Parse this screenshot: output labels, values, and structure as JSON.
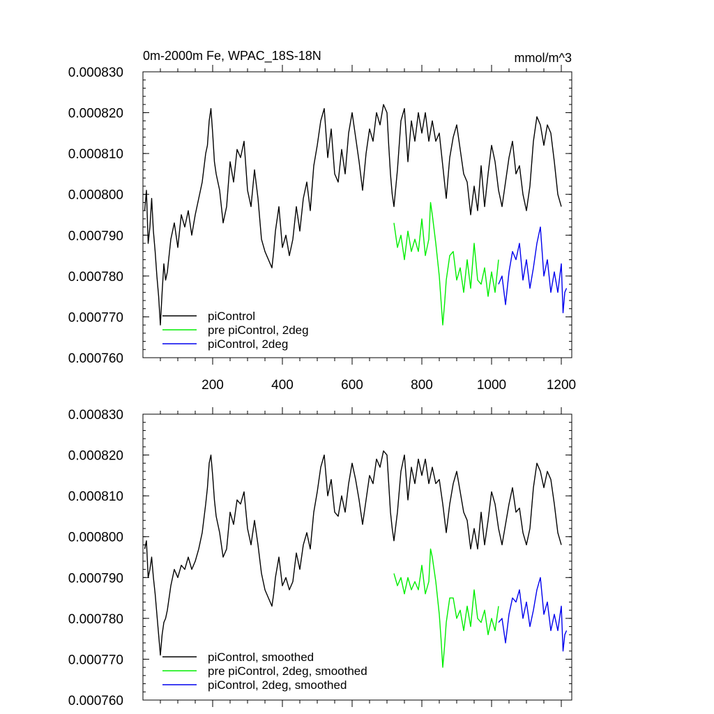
{
  "chart_data": [
    {
      "type": "line",
      "title": "0m-2000m Fe, WPAC_18S-18N",
      "units": "mmol/m^3",
      "xlim": [
        0,
        1230
      ],
      "ylim": [
        0.00076,
        0.00083
      ],
      "yticks": [
        "0.000760",
        "0.000770",
        "0.000780",
        "0.000790",
        "0.000800",
        "0.000810",
        "0.000820",
        "0.000830"
      ],
      "xticks": [
        "200",
        "400",
        "600",
        "800",
        "1000",
        "1200"
      ],
      "legend": "bottom-left",
      "series": [
        {
          "name": "piControl",
          "color": "#000000",
          "x": [
            5,
            10,
            15,
            20,
            25,
            30,
            35,
            40,
            45,
            50,
            55,
            60,
            65,
            70,
            80,
            90,
            100,
            110,
            120,
            130,
            140,
            150,
            160,
            170,
            180,
            185,
            190,
            195,
            200,
            205,
            210,
            220,
            230,
            240,
            250,
            260,
            270,
            280,
            290,
            300,
            310,
            320,
            330,
            340,
            350,
            360,
            370,
            375,
            380,
            390,
            400,
            410,
            420,
            430,
            440,
            450,
            460,
            470,
            480,
            490,
            500,
            510,
            520,
            530,
            540,
            550,
            560,
            570,
            580,
            590,
            600,
            610,
            620,
            630,
            640,
            650,
            660,
            670,
            680,
            690,
            700,
            705,
            710,
            715,
            720,
            730,
            740,
            750,
            760,
            770,
            780,
            790,
            800,
            810,
            820,
            830,
            840,
            850,
            860,
            870,
            880,
            890,
            900,
            910,
            920,
            930,
            940,
            950,
            960,
            970,
            980,
            990,
            1000,
            1010,
            1020,
            1030,
            1040,
            1050,
            1060,
            1070,
            1080,
            1090,
            1100,
            1110,
            1120,
            1130,
            1140,
            1150,
            1160,
            1170,
            1180,
            1190,
            1200
          ],
          "values": [
            0.000796,
            0.000801,
            0.000788,
            0.000792,
            0.000799,
            0.000791,
            0.000786,
            0.00078,
            0.000775,
            0.000768,
            0.000776,
            0.000783,
            0.000779,
            0.000781,
            0.000789,
            0.000793,
            0.000787,
            0.000795,
            0.000792,
            0.000796,
            0.00079,
            0.000795,
            0.000799,
            0.000803,
            0.00081,
            0.000812,
            0.000818,
            0.000821,
            0.000815,
            0.000808,
            0.000805,
            0.000801,
            0.000793,
            0.000797,
            0.000808,
            0.000803,
            0.000811,
            0.000809,
            0.000813,
            0.000801,
            0.000797,
            0.000806,
            0.000799,
            0.000789,
            0.000786,
            0.000784,
            0.000782,
            0.000786,
            0.000791,
            0.000797,
            0.000787,
            0.00079,
            0.000785,
            0.000789,
            0.000797,
            0.000791,
            0.000799,
            0.000803,
            0.000796,
            0.000807,
            0.000812,
            0.000818,
            0.000821,
            0.000809,
            0.000816,
            0.000805,
            0.000803,
            0.000811,
            0.000805,
            0.000815,
            0.00082,
            0.000814,
            0.000808,
            0.000801,
            0.00081,
            0.000816,
            0.000813,
            0.00082,
            0.000817,
            0.000822,
            0.00082,
            0.000812,
            0.000805,
            0.0008,
            0.000797,
            0.000806,
            0.000818,
            0.000821,
            0.000808,
            0.000818,
            0.000813,
            0.00082,
            0.000815,
            0.00082,
            0.000813,
            0.000818,
            0.000813,
            0.000815,
            0.000807,
            0.000799,
            0.000809,
            0.000814,
            0.000817,
            0.000811,
            0.000805,
            0.000803,
            0.000795,
            0.000802,
            0.000796,
            0.000807,
            0.000797,
            0.000805,
            0.000812,
            0.000808,
            0.000801,
            0.000797,
            0.000803,
            0.000809,
            0.000813,
            0.000805,
            0.000807,
            0.0008,
            0.000796,
            0.000802,
            0.000813,
            0.000819,
            0.000817,
            0.000812,
            0.000817,
            0.000815,
            0.000808,
            0.0008,
            0.000797
          ]
        },
        {
          "name": "pre piControl, 2deg",
          "color": "#00ee00",
          "x": [
            720,
            730,
            740,
            750,
            760,
            770,
            780,
            790,
            800,
            810,
            820,
            825,
            830,
            840,
            850,
            855,
            860,
            865,
            870,
            880,
            890,
            900,
            910,
            920,
            930,
            940,
            950,
            960,
            970,
            980,
            990,
            1000,
            1010,
            1020
          ],
          "values": [
            0.000793,
            0.000787,
            0.00079,
            0.000784,
            0.000791,
            0.000786,
            0.000789,
            0.000786,
            0.000794,
            0.000785,
            0.000789,
            0.000798,
            0.000795,
            0.000788,
            0.00078,
            0.000774,
            0.000768,
            0.000773,
            0.000779,
            0.000785,
            0.000786,
            0.000779,
            0.000782,
            0.000776,
            0.000784,
            0.000777,
            0.000788,
            0.000779,
            0.000778,
            0.000782,
            0.000775,
            0.000781,
            0.000776,
            0.000784
          ]
        },
        {
          "name": "piControl, 2deg",
          "color": "#0000ee",
          "x": [
            1020,
            1030,
            1040,
            1050,
            1060,
            1070,
            1080,
            1090,
            1100,
            1110,
            1120,
            1130,
            1140,
            1150,
            1160,
            1170,
            1180,
            1190,
            1200,
            1205,
            1210,
            1215
          ],
          "values": [
            0.000778,
            0.00078,
            0.000773,
            0.000781,
            0.000786,
            0.000784,
            0.000788,
            0.000779,
            0.000784,
            0.000777,
            0.000782,
            0.000788,
            0.000792,
            0.00078,
            0.000784,
            0.000776,
            0.000781,
            0.000776,
            0.000783,
            0.000771,
            0.000776,
            0.000777
          ]
        }
      ]
    },
    {
      "type": "line",
      "xlim": [
        0,
        1230
      ],
      "ylim": [
        0.00076,
        0.00083
      ],
      "yticks": [
        "0.000760",
        "0.000770",
        "0.000780",
        "0.000790",
        "0.000800",
        "0.000810",
        "0.000820",
        "0.000830"
      ],
      "legend": "bottom-left",
      "series": [
        {
          "name": "piControl, smoothed",
          "color": "#000000",
          "x": [
            5,
            10,
            15,
            20,
            25,
            30,
            35,
            40,
            45,
            50,
            55,
            60,
            65,
            70,
            80,
            90,
            100,
            110,
            120,
            130,
            140,
            150,
            160,
            170,
            180,
            185,
            190,
            195,
            200,
            205,
            210,
            220,
            230,
            240,
            250,
            260,
            270,
            280,
            290,
            300,
            310,
            320,
            330,
            340,
            350,
            360,
            370,
            375,
            380,
            390,
            400,
            410,
            420,
            430,
            440,
            450,
            460,
            470,
            480,
            490,
            500,
            510,
            520,
            530,
            540,
            550,
            560,
            570,
            580,
            590,
            600,
            610,
            620,
            630,
            640,
            650,
            660,
            670,
            680,
            690,
            700,
            705,
            710,
            715,
            720,
            730,
            740,
            750,
            760,
            770,
            780,
            790,
            800,
            810,
            820,
            830,
            840,
            850,
            860,
            870,
            880,
            890,
            900,
            910,
            920,
            930,
            940,
            950,
            960,
            970,
            980,
            990,
            1000,
            1010,
            1020,
            1030,
            1040,
            1050,
            1060,
            1070,
            1080,
            1090,
            1100,
            1110,
            1120,
            1130,
            1140,
            1150,
            1160,
            1170,
            1180,
            1190,
            1200
          ],
          "values": [
            0.000797,
            0.000799,
            0.00079,
            0.000792,
            0.000795,
            0.00079,
            0.000786,
            0.000781,
            0.000776,
            0.000771,
            0.000776,
            0.000779,
            0.00078,
            0.000782,
            0.000788,
            0.000792,
            0.00079,
            0.000793,
            0.000792,
            0.000795,
            0.000792,
            0.000794,
            0.000797,
            0.000801,
            0.000808,
            0.000812,
            0.000818,
            0.00082,
            0.000815,
            0.000809,
            0.000805,
            0.000801,
            0.000795,
            0.000797,
            0.000806,
            0.000803,
            0.000809,
            0.000808,
            0.000811,
            0.000802,
            0.000798,
            0.000804,
            0.000798,
            0.000791,
            0.000787,
            0.000785,
            0.000783,
            0.000786,
            0.00079,
            0.000795,
            0.000788,
            0.00079,
            0.000787,
            0.000789,
            0.000796,
            0.000792,
            0.000798,
            0.000801,
            0.000797,
            0.000806,
            0.000811,
            0.000817,
            0.00082,
            0.00081,
            0.000814,
            0.000806,
            0.000805,
            0.00081,
            0.000806,
            0.000813,
            0.000818,
            0.000814,
            0.000809,
            0.000803,
            0.000809,
            0.000815,
            0.000813,
            0.000819,
            0.000817,
            0.000821,
            0.00082,
            0.000813,
            0.000806,
            0.000802,
            0.000799,
            0.000806,
            0.000816,
            0.00082,
            0.000809,
            0.000817,
            0.000813,
            0.000819,
            0.000815,
            0.000819,
            0.000813,
            0.000817,
            0.000813,
            0.000814,
            0.000808,
            0.000801,
            0.000808,
            0.000813,
            0.000816,
            0.000811,
            0.000806,
            0.000804,
            0.000797,
            0.000802,
            0.000797,
            0.000806,
            0.000798,
            0.000804,
            0.000811,
            0.000808,
            0.000802,
            0.000798,
            0.000803,
            0.000808,
            0.000812,
            0.000806,
            0.000807,
            0.000801,
            0.000798,
            0.000802,
            0.000812,
            0.000818,
            0.000816,
            0.000812,
            0.000816,
            0.000814,
            0.000808,
            0.000801,
            0.000798
          ]
        },
        {
          "name": "pre piControl, 2deg, smoothed",
          "color": "#00ee00",
          "x": [
            720,
            730,
            740,
            750,
            760,
            770,
            780,
            790,
            800,
            810,
            820,
            825,
            830,
            840,
            850,
            855,
            860,
            865,
            870,
            880,
            890,
            900,
            910,
            920,
            930,
            940,
            950,
            960,
            970,
            980,
            990,
            1000,
            1010,
            1020
          ],
          "values": [
            0.000791,
            0.000788,
            0.00079,
            0.000786,
            0.00079,
            0.000787,
            0.000789,
            0.000787,
            0.000793,
            0.000786,
            0.000789,
            0.000797,
            0.000795,
            0.000789,
            0.000781,
            0.000775,
            0.000768,
            0.000773,
            0.000779,
            0.000785,
            0.000785,
            0.00078,
            0.000782,
            0.000777,
            0.000783,
            0.000778,
            0.000787,
            0.00078,
            0.000779,
            0.000782,
            0.000776,
            0.00078,
            0.000777,
            0.000783
          ]
        },
        {
          "name": "piControl, 2deg, smoothed",
          "color": "#0000ee",
          "x": [
            1020,
            1030,
            1040,
            1050,
            1060,
            1070,
            1080,
            1090,
            1100,
            1110,
            1120,
            1130,
            1140,
            1150,
            1160,
            1170,
            1180,
            1190,
            1200,
            1205,
            1210,
            1215
          ],
          "values": [
            0.000779,
            0.00078,
            0.000774,
            0.000781,
            0.000785,
            0.000784,
            0.000787,
            0.00078,
            0.000784,
            0.000778,
            0.000782,
            0.000787,
            0.00079,
            0.000781,
            0.000784,
            0.000777,
            0.000781,
            0.000777,
            0.000783,
            0.000772,
            0.000776,
            0.000777
          ]
        }
      ]
    }
  ]
}
